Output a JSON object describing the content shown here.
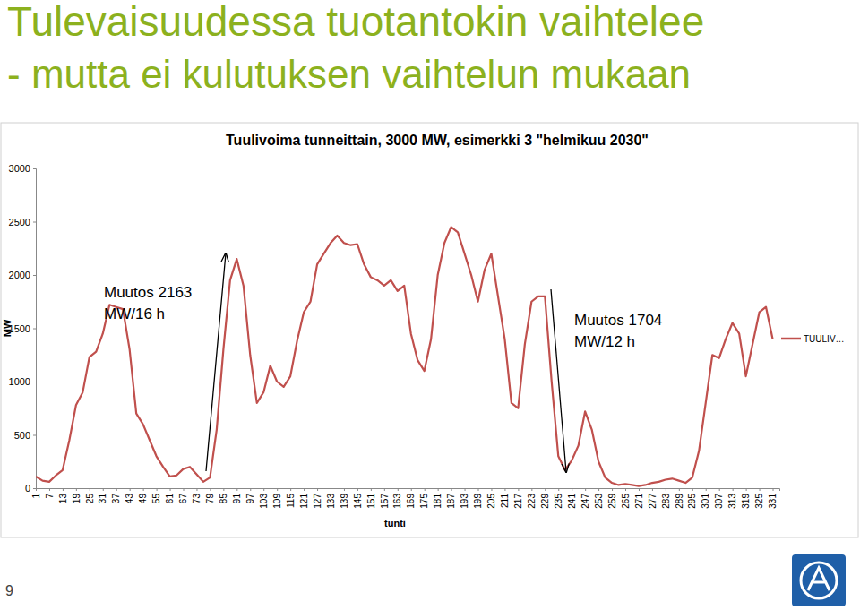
{
  "slide": {
    "heading": [
      "Tulevaisuudessa tuotantokin vaihtelee",
      "- mutta ei kulutuksen vaihtelun mukaan"
    ],
    "page_number": "9"
  },
  "chart_data": {
    "type": "line",
    "title": "Tuulivoima tunneittain, 3000 MW, esimerkki 3 \"helmikuu 2030\"",
    "x_label": "tunti",
    "y_label": "MW",
    "annotations": [
      "Muutos 2163 MW/16 h",
      "Muutos 1704 MW/12 h"
    ],
    "x": [
      1,
      4,
      7,
      10,
      13,
      16,
      19,
      22,
      25,
      28,
      31,
      34,
      37,
      40,
      43,
      46,
      49,
      52,
      55,
      58,
      61,
      64,
      67,
      70,
      73,
      76,
      79,
      82,
      85,
      88,
      91,
      94,
      97,
      100,
      103,
      106,
      109,
      112,
      115,
      118,
      121,
      124,
      127,
      130,
      133,
      136,
      139,
      142,
      145,
      148,
      151,
      154,
      157,
      160,
      163,
      166,
      169,
      172,
      175,
      178,
      181,
      184,
      187,
      190,
      193,
      196,
      199,
      202,
      205,
      208,
      211,
      214,
      217,
      220,
      223,
      226,
      229,
      232,
      235,
      238,
      241,
      244,
      247,
      250,
      253,
      256,
      259,
      262,
      265,
      268,
      271,
      274,
      277,
      280,
      283,
      286,
      289,
      292,
      295,
      298,
      301,
      304,
      307,
      310,
      313,
      316,
      319,
      322,
      325,
      328,
      331
    ],
    "series": [
      {
        "name": "TUULIV…",
        "color": "#c0504d",
        "values": [
          110,
          70,
          60,
          120,
          170,
          450,
          780,
          900,
          1230,
          1280,
          1450,
          1720,
          1700,
          1680,
          1300,
          700,
          600,
          450,
          300,
          200,
          110,
          120,
          180,
          200,
          130,
          60,
          100,
          550,
          1300,
          1950,
          2150,
          1900,
          1250,
          800,
          900,
          1150,
          1000,
          950,
          1050,
          1380,
          1650,
          1750,
          2100,
          2200,
          2300,
          2370,
          2300,
          2280,
          2290,
          2100,
          1980,
          1950,
          1900,
          1950,
          1850,
          1900,
          1450,
          1200,
          1100,
          1400,
          2000,
          2300,
          2450,
          2400,
          2200,
          2000,
          1750,
          2050,
          2200,
          1800,
          1400,
          800,
          750,
          1350,
          1750,
          1800,
          1800,
          1000,
          300,
          170,
          260,
          400,
          720,
          550,
          250,
          100,
          50,
          30,
          40,
          30,
          20,
          30,
          50,
          60,
          80,
          90,
          70,
          50,
          100,
          350,
          800,
          1250,
          1220,
          1400,
          1550,
          1450,
          1050,
          1350,
          1650,
          1700,
          1400
        ]
      }
    ],
    "xlim": [
      1,
      334
    ],
    "xticks": [
      1,
      7,
      13,
      19,
      25,
      31,
      37,
      43,
      49,
      55,
      61,
      67,
      73,
      79,
      85,
      91,
      97,
      103,
      109,
      115,
      121,
      127,
      133,
      139,
      145,
      151,
      157,
      163,
      169,
      175,
      181,
      187,
      193,
      199,
      205,
      211,
      217,
      223,
      229,
      235,
      241,
      247,
      253,
      259,
      265,
      271,
      277,
      283,
      289,
      295,
      301,
      307,
      313,
      319,
      325,
      331
    ],
    "ylim": [
      0,
      3000
    ],
    "yticks": [
      0,
      500,
      1000,
      1500,
      2000,
      2500,
      3000
    ],
    "grid": false,
    "legend": "right"
  }
}
